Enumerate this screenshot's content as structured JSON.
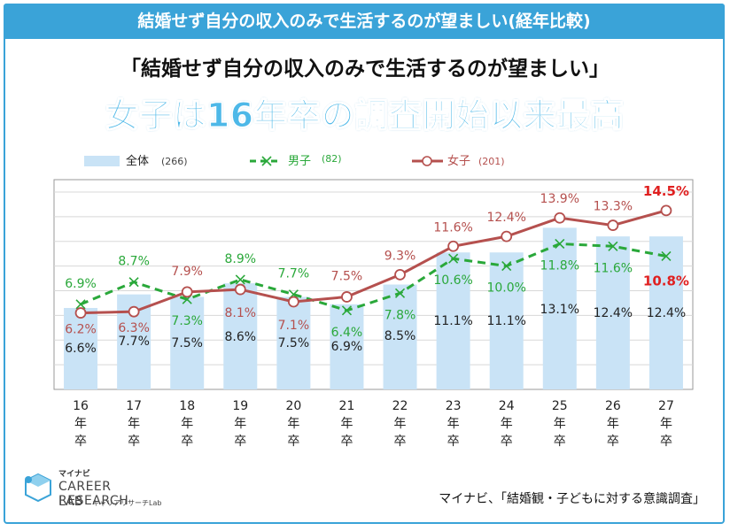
{
  "header": {
    "title": "結婚せず自分の収入のみで生活するのが望ましい(経年比較)"
  },
  "subtitle": "「結婚せず自分の収入のみで生活するのが望ましい」",
  "headline": "女子は16年卒の調査開始以来最高",
  "source": "マイナビ、「結婚観・子どもに対する意識調査」",
  "logo": {
    "small": "マイナビ",
    "main": "CAREER RESEARCH",
    "lab": "LAB",
    "lab_sub": "キャリアリサーチLab"
  },
  "colors": {
    "bar": "#c9e3f6",
    "male": "#2aa83a",
    "female": "#b5504e",
    "highlight": "#e02020",
    "header": "#3aa3d8"
  },
  "chart_data": {
    "type": "bar",
    "categories": [
      [
        "16",
        "年",
        "卒"
      ],
      [
        "17",
        "年",
        "卒"
      ],
      [
        "18",
        "年",
        "卒"
      ],
      [
        "19",
        "年",
        "卒"
      ],
      [
        "20",
        "年",
        "卒"
      ],
      [
        "21",
        "年",
        "卒"
      ],
      [
        "22",
        "年",
        "卒"
      ],
      [
        "23",
        "年",
        "卒"
      ],
      [
        "24",
        "年",
        "卒"
      ],
      [
        "25",
        "年",
        "卒"
      ],
      [
        "26",
        "年",
        "卒"
      ],
      [
        "27",
        "年",
        "卒"
      ]
    ],
    "ylim": [
      0,
      17
    ],
    "grid": true,
    "legend": [
      {
        "name": "全体",
        "n": "(266)",
        "style": "bar"
      },
      {
        "name": "男子",
        "n": "(82)",
        "style": "dashed-x"
      },
      {
        "name": "女子",
        "n": "(201)",
        "style": "line-circle"
      }
    ],
    "series": [
      {
        "name": "全体",
        "type": "bar",
        "values": [
          6.6,
          7.7,
          7.5,
          8.6,
          7.5,
          6.9,
          8.5,
          11.1,
          11.1,
          13.1,
          12.4,
          12.4
        ],
        "labels": [
          "6.6%",
          "7.7%",
          "7.5%",
          "8.6%",
          "7.5%",
          "6.9%",
          "8.5%",
          "11.1%",
          "11.1%",
          "13.1%",
          "12.4%",
          "12.4%"
        ]
      },
      {
        "name": "男子",
        "type": "line",
        "values": [
          6.9,
          8.7,
          7.3,
          8.9,
          7.7,
          6.4,
          7.8,
          10.6,
          10.0,
          11.8,
          11.6,
          10.8
        ],
        "labels": [
          "6.9%",
          "8.7%",
          "7.3%",
          "8.9%",
          "7.7%",
          "6.4%",
          "7.8%",
          "10.6%",
          "10.0%",
          "11.8%",
          "11.6%",
          "10.8%"
        ]
      },
      {
        "name": "女子",
        "type": "line",
        "values": [
          6.2,
          6.3,
          7.9,
          8.1,
          7.1,
          7.5,
          9.3,
          11.6,
          12.4,
          13.9,
          13.3,
          14.5
        ],
        "labels": [
          "6.2%",
          "6.3%",
          "7.9%",
          "8.1%",
          "7.1%",
          "7.5%",
          "9.3%",
          "11.6%",
          "12.4%",
          "13.9%",
          "13.3%",
          "14.5%"
        ]
      }
    ]
  }
}
